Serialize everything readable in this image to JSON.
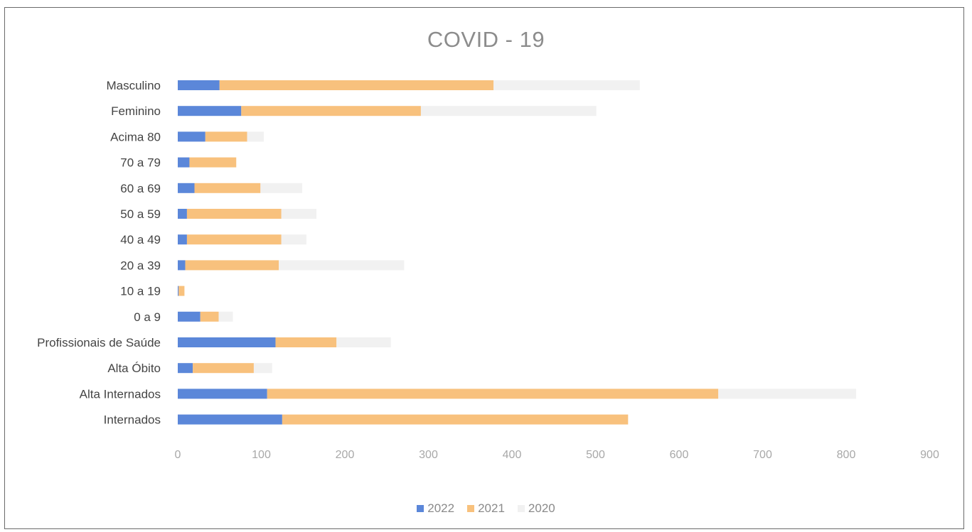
{
  "chart_data": {
    "type": "bar",
    "orientation": "horizontal",
    "stacked": true,
    "title": "COVID - 19",
    "categories": [
      "Masculino",
      "Feminino",
      "Acima 80",
      "70 a 79",
      "60 a 69",
      "50 a 59",
      "40 a 49",
      "20 a 39",
      "10 a 19",
      "0 a 9",
      "Profissionais de Saúde",
      "Alta Óbito",
      "Alta Internados",
      "Internados"
    ],
    "series": [
      {
        "name": "2022",
        "color": "#5b87d9",
        "values": [
          50,
          76,
          33,
          14,
          20,
          11,
          11,
          9,
          1,
          27,
          117,
          18,
          107,
          125
        ]
      },
      {
        "name": "2021",
        "color": "#f8c17d",
        "values": [
          328,
          215,
          50,
          56,
          79,
          113,
          113,
          112,
          7,
          22,
          73,
          73,
          540,
          414
        ]
      },
      {
        "name": "2020",
        "color": "#f1f1f1",
        "values": [
          175,
          210,
          20,
          0,
          50,
          42,
          30,
          150,
          0,
          17,
          65,
          22,
          165,
          0
        ]
      }
    ],
    "xlim": [
      0,
      900
    ],
    "xticks": [
      "0",
      "100",
      "200",
      "300",
      "400",
      "500",
      "600",
      "700",
      "800",
      "900"
    ],
    "grid": false,
    "legend_position": "bottom"
  }
}
